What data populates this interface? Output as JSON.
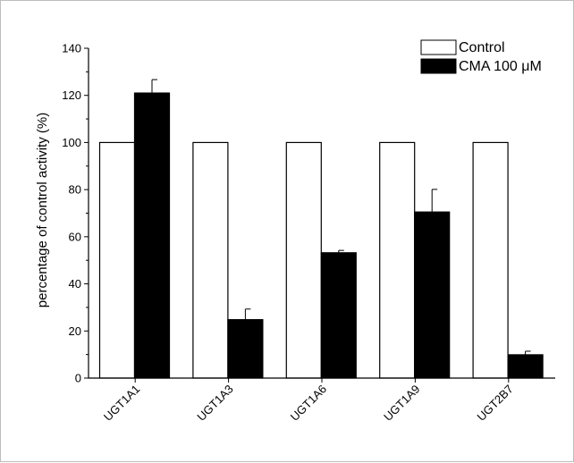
{
  "chart_data": {
    "type": "bar",
    "title": "",
    "xlabel": "",
    "ylabel": "percentage of control activity (%)",
    "ylim": [
      0,
      140
    ],
    "yticks": [
      0,
      20,
      40,
      60,
      80,
      100,
      120,
      140
    ],
    "categories": [
      "UGT1A1",
      "UGT1A3",
      "UGT1A6",
      "UGT1A9",
      "UGT2B7"
    ],
    "series": [
      {
        "name": "Control",
        "color": "#ffffff",
        "values": [
          100,
          100,
          100,
          100,
          100
        ],
        "errors": [
          0,
          0,
          0,
          0,
          0
        ]
      },
      {
        "name": "CMA 100 μM",
        "color": "#000000",
        "values": [
          121,
          24.8,
          53.2,
          70.5,
          9.9
        ],
        "errors": [
          5.7,
          4.5,
          1.0,
          9.6,
          1.5
        ]
      }
    ],
    "legend_position": "top-right",
    "grid": false
  }
}
